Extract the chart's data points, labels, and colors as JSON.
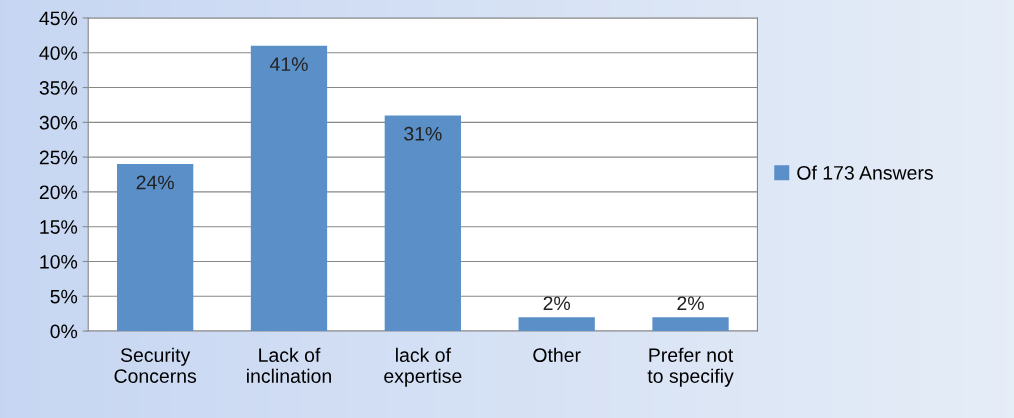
{
  "chart_data": {
    "type": "bar",
    "categories": [
      "Security\nConcerns",
      "Lack of\ninclination",
      "lack of\nexpertise",
      "Other",
      "Prefer not\nto specifiy"
    ],
    "series": [
      {
        "name": "Of 173 Answers",
        "color": "#5b8fc7",
        "values": [
          24,
          41,
          31,
          2,
          2
        ],
        "value_labels": [
          "24%",
          "41%",
          "31%",
          "2%",
          "2%"
        ]
      }
    ],
    "ylim": [
      0,
      45
    ],
    "yticks": [
      {
        "value": 0,
        "label": "0%"
      },
      {
        "value": 5,
        "label": "5%"
      },
      {
        "value": 10,
        "label": "10%"
      },
      {
        "value": 15,
        "label": "15%"
      },
      {
        "value": 20,
        "label": "20%"
      },
      {
        "value": 25,
        "label": "25%"
      },
      {
        "value": 30,
        "label": "30%"
      },
      {
        "value": 35,
        "label": "35%"
      },
      {
        "value": 40,
        "label": "40%"
      },
      {
        "value": 45,
        "label": "45%"
      }
    ],
    "grid": "y",
    "legend": "right"
  }
}
